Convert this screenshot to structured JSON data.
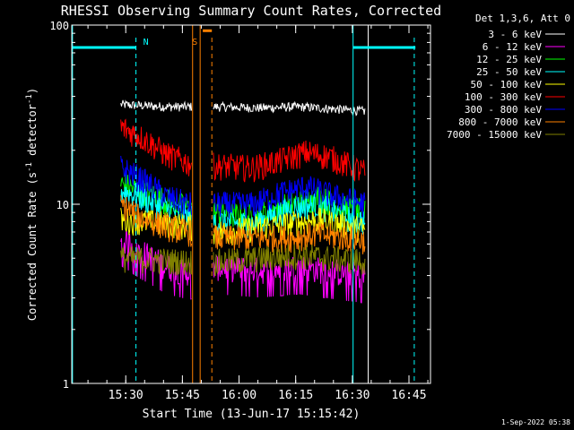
{
  "chart_data": {
    "type": "line",
    "title": "RHESSI Observing Summary Count Rates, Corrected",
    "xlabel": "Start Time (13-Jun-17 15:15:42)",
    "ylabel_prefix": "Corrected Count Rate (s",
    "ylabel_sup1": "-1",
    "ylabel_mid": " detector",
    "ylabel_sup2": "-1",
    "ylabel_suffix": ")",
    "yscale": "log",
    "ylim": [
      1,
      100
    ],
    "xlim_minutes": [
      0,
      95
    ],
    "x_ticks": [
      "15:30",
      "15:45",
      "16:00",
      "16:15",
      "16:30",
      "16:45"
    ],
    "x_tick_minutes": [
      14.3,
      29.3,
      44.3,
      59.3,
      74.3,
      89.3
    ],
    "y_ticks": [
      "100",
      "10",
      "1"
    ],
    "y_tick_values": [
      100,
      10,
      1
    ],
    "grid": false,
    "legend_title": "Det 1,3,6, Att 0",
    "legend_position": "top-right",
    "timestamp": "1-Sep-2022 05:38",
    "markers": [
      {
        "label": "N",
        "color": "#00ffff",
        "minute": 17.0,
        "dashed": true
      },
      {
        "label": "S",
        "color": "#ff8000",
        "minute": 37.1,
        "dashed": true
      }
    ],
    "night_bars": [
      {
        "color": "#00ffff",
        "from": 0,
        "to": 17.0,
        "y": 75
      },
      {
        "color": "#00ffff",
        "from": 74.5,
        "to": 91.0,
        "y": 75
      }
    ],
    "saa_bars": [
      {
        "color": "#ff8000",
        "from": 34.7,
        "to": 37.1,
        "y": 93
      }
    ],
    "vertical_lines": [
      {
        "color": "#00ffff",
        "minute": 0.2
      },
      {
        "color": "#00ffff",
        "minute": 74.5
      },
      {
        "color": "#ff8000",
        "minute": 32.0
      },
      {
        "color": "#ff8000",
        "minute": 34.0
      },
      {
        "color": "#ffffff",
        "minute": 78.5
      }
    ],
    "gaps": [
      {
        "from": 31.8,
        "to": 37.5
      }
    ],
    "data_range": [
      13.0,
      77.8
    ],
    "series": [
      {
        "name": "3 - 6 keV",
        "color": "#ffffff",
        "profile": [
          [
            13,
            36
          ],
          [
            25,
            35
          ],
          [
            31,
            35
          ],
          [
            38,
            35
          ],
          [
            50,
            34.5
          ],
          [
            60,
            35
          ],
          [
            70,
            34
          ],
          [
            78,
            33
          ]
        ]
      },
      {
        "name": "6 - 12 keV",
        "color": "#ff00ff",
        "profile": [
          [
            13,
            6.5
          ],
          [
            18,
            5.5
          ],
          [
            25,
            4.5
          ],
          [
            31,
            4.2
          ],
          [
            38,
            4.5
          ],
          [
            50,
            4.3
          ],
          [
            60,
            4.5
          ],
          [
            70,
            4.2
          ],
          [
            78,
            4.0
          ]
        ]
      },
      {
        "name": "12 - 25 keV",
        "color": "#00ff00",
        "profile": [
          [
            13,
            13
          ],
          [
            18,
            12
          ],
          [
            25,
            10.5
          ],
          [
            31,
            9.5
          ],
          [
            38,
            9
          ],
          [
            48,
            8.5
          ],
          [
            58,
            10
          ],
          [
            65,
            11
          ],
          [
            72,
            9.5
          ],
          [
            78,
            9
          ]
        ]
      },
      {
        "name": "25 - 50 keV",
        "color": "#00ffff",
        "profile": [
          [
            13,
            12
          ],
          [
            18,
            11
          ],
          [
            25,
            9.5
          ],
          [
            31,
            8.5
          ],
          [
            38,
            8
          ],
          [
            48,
            7.8
          ],
          [
            58,
            9.5
          ],
          [
            65,
            10
          ],
          [
            72,
            8.5
          ],
          [
            78,
            8
          ]
        ]
      },
      {
        "name": "50 - 100 keV",
        "color": "#ffff00",
        "profile": [
          [
            13,
            8.2
          ],
          [
            20,
            8
          ],
          [
            31,
            7.5
          ],
          [
            40,
            7
          ],
          [
            58,
            7.8
          ],
          [
            65,
            8.2
          ],
          [
            78,
            7.2
          ]
        ]
      },
      {
        "name": "100 - 300 keV",
        "color": "#ff0000",
        "profile": [
          [
            13,
            27
          ],
          [
            18,
            24
          ],
          [
            25,
            19
          ],
          [
            31,
            17
          ],
          [
            38,
            16.5
          ],
          [
            48,
            16
          ],
          [
            55,
            17.5
          ],
          [
            62,
            19.5
          ],
          [
            68,
            18.5
          ],
          [
            72,
            17
          ],
          [
            78,
            15
          ]
        ]
      },
      {
        "name": "300 - 800 keV",
        "color": "#0000ff",
        "profile": [
          [
            13,
            16
          ],
          [
            18,
            14
          ],
          [
            25,
            11
          ],
          [
            31,
            10
          ],
          [
            38,
            10
          ],
          [
            48,
            10
          ],
          [
            55,
            11.5
          ],
          [
            62,
            12.5
          ],
          [
            70,
            11
          ],
          [
            78,
            10
          ]
        ]
      },
      {
        "name": "800 - 7000 keV",
        "color": "#ff8000",
        "profile": [
          [
            13,
            10
          ],
          [
            18,
            8.5
          ],
          [
            25,
            7.5
          ],
          [
            31,
            7
          ],
          [
            38,
            6.5
          ],
          [
            48,
            6.5
          ],
          [
            58,
            6.5
          ],
          [
            65,
            6.8
          ],
          [
            78,
            6.3
          ]
        ]
      },
      {
        "name": "7000 - 15000 keV",
        "color": "#808000",
        "profile": [
          [
            13,
            5
          ],
          [
            31,
            4.8
          ],
          [
            40,
            4.8
          ],
          [
            60,
            5.2
          ],
          [
            78,
            4.8
          ]
        ]
      }
    ]
  }
}
